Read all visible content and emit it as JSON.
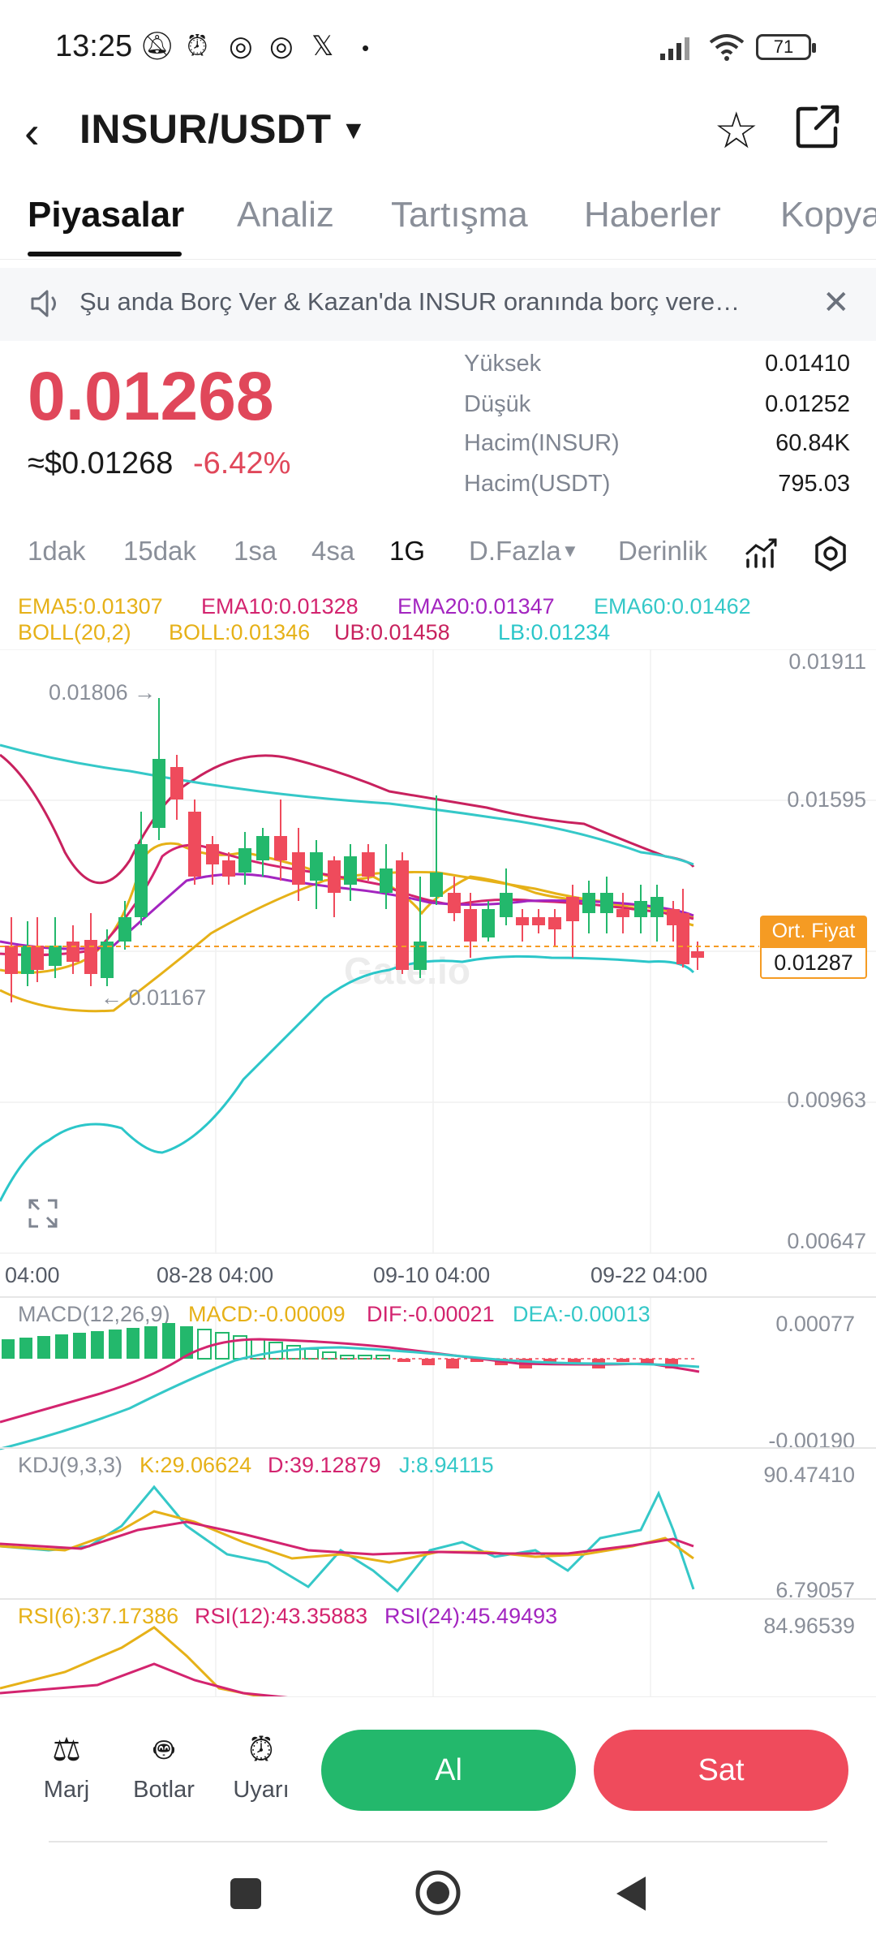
{
  "status_bar": {
    "time": "13:25",
    "battery": "71",
    "icons": [
      "mute-icon",
      "alarm-icon",
      "sync-icon",
      "sync-icon",
      "x-logo-icon",
      "dot-icon",
      "signal-icon",
      "wifi-icon",
      "battery-icon"
    ]
  },
  "header": {
    "pair": "INSUR/USDT",
    "caret": "▼",
    "icons": [
      "back-arrow-icon",
      "star-icon",
      "share-icon"
    ]
  },
  "tabs": [
    "Piyasalar",
    "Analiz",
    "Tartışma",
    "Haberler",
    "Kopya"
  ],
  "active_tab": "Piyasalar",
  "notice": {
    "text": "Şu anda Borç Ver & Kazan'da INSUR oranında borç vere…"
  },
  "price": {
    "last": "0.01268",
    "usd": "≈$0.01268",
    "change": "-6.42%"
  },
  "stats": [
    {
      "label": "Yüksek",
      "value": "0.01410"
    },
    {
      "label": "Düşük",
      "value": "0.01252"
    },
    {
      "label": "Hacim(INSUR)",
      "value": "60.84K"
    },
    {
      "label": "Hacim(USDT)",
      "value": "795.03"
    }
  ],
  "intervals": [
    "1dak",
    "15dak",
    "1sa",
    "4sa",
    "1G",
    "D.Fazla",
    "Derinlik"
  ],
  "active_interval": "1G",
  "more_caret": "▼",
  "legend": {
    "ema5": "EMA5:0.01307",
    "ema10": "EMA10:0.01328",
    "ema20": "EMA20:0.01347",
    "ema60": "EMA60:0.01462",
    "boll": "BOLL(20,2)",
    "boll_mid": "BOLL:0.01346",
    "ub": "UB:0.01458",
    "lb": "LB:0.01234"
  },
  "main_chart": {
    "y_labels": [
      "0.01911",
      "0.01595",
      "0.00963",
      "0.00647"
    ],
    "x_labels": [
      "04:00",
      "08-28 04:00",
      "09-10 04:00",
      "09-22 04:00"
    ],
    "high_marker": "0.01806 →",
    "low_marker": "← 0.01167",
    "avg_label": "Ort. Fiyat",
    "avg_value": "0.01287",
    "watermark": "Gate.io"
  },
  "macd": {
    "title": "MACD(12,26,9)",
    "macd": "MACD:-0.00009",
    "dif": "DIF:-0.00021",
    "dea": "DEA:-0.00013",
    "y_max": "0.00077",
    "y_min": "-0.00190"
  },
  "kdj": {
    "title": "KDJ(9,3,3)",
    "k": "K:29.06624",
    "d": "D:39.12879",
    "j": "J:8.94115",
    "y_max": "90.47410",
    "y_min": "6.79057"
  },
  "rsi": {
    "rsi6": "RSI(6):37.17386",
    "rsi12": "RSI(12):43.35883",
    "rsi24": "RSI(24):45.49493",
    "y_max": "84.96539"
  },
  "bottom_bar": {
    "margin": "Marj",
    "bots": "Botlar",
    "alerts": "Uyarı",
    "buy": "Al",
    "sell": "Sat"
  },
  "colors": {
    "up": "#23b86c",
    "down": "#ef4b5c",
    "ema5": "#e6b118",
    "ema10": "#d3246f",
    "ema20": "#a325c0",
    "ema60": "#35c8c8",
    "ub": "#c8215e",
    "lb": "#2bc6c9",
    "boll": "#e6b118"
  }
}
